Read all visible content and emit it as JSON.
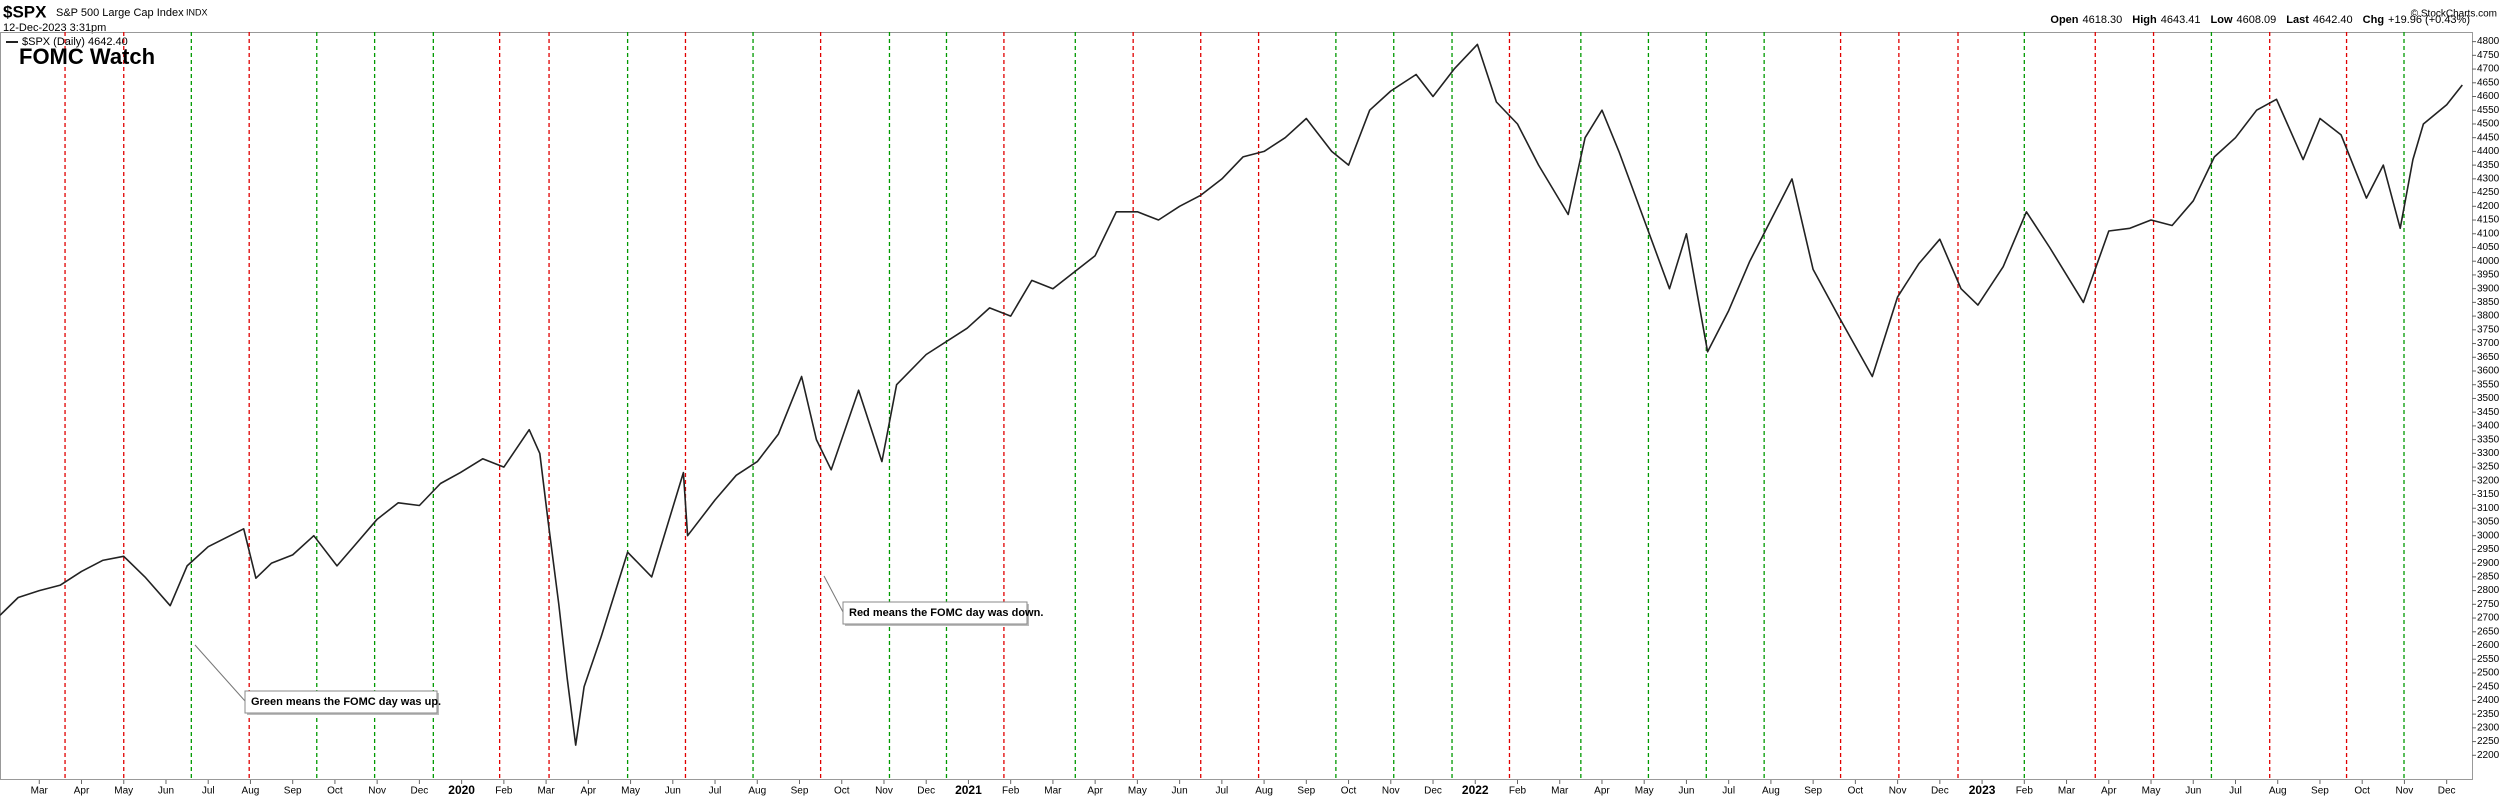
{
  "header": {
    "symbol": "$SPX",
    "name": "S&P 500 Large Cap Index",
    "exchange": "INDX",
    "date": "12-Dec-2023 3:31pm",
    "legend": "$SPX (Daily) 4642.40",
    "quote": [
      {
        "label": "Open",
        "value": "4618.30"
      },
      {
        "label": "High",
        "value": "4643.41"
      },
      {
        "label": "Low",
        "value": "4608.09"
      },
      {
        "label": "Last",
        "value": "4642.40"
      },
      {
        "label": "Chg",
        "value": "+19.96 (+0.43%)"
      }
    ],
    "credit": "© StockCharts.com"
  },
  "chart_data": {
    "type": "line",
    "title": "FOMC Watch",
    "title_color": "#0000dd",
    "x": [
      0.07,
      0.5,
      1,
      1.5,
      2,
      2.5,
      3,
      3.5,
      4.1,
      4.5,
      5,
      5.84,
      6.13,
      6.5,
      7,
      7.5,
      8.05,
      8.5,
      9,
      9.5,
      10,
      10.5,
      10.97,
      11.5,
      12,
      12.6,
      12.85,
      13.05,
      13.3,
      13.5,
      13.7,
      13.9,
      14.3,
      14.93,
      15.5,
      16.25,
      16.35,
      17,
      17.5,
      18,
      18.5,
      19.05,
      19.4,
      19.75,
      20.4,
      20.95,
      21.3,
      22,
      22.97,
      23.5,
      24,
      24.5,
      25,
      25.5,
      26,
      26.5,
      27,
      27.5,
      28,
      28.5,
      29,
      29.5,
      30,
      30.5,
      31,
      31.6,
      32,
      32.5,
      33,
      33.6,
      34,
      34.5,
      35.05,
      35.5,
      36,
      36.5,
      37.2,
      37.6,
      38,
      38.4,
      39,
      39.6,
      40,
      40.5,
      41,
      41.5,
      42.5,
      43,
      43.6,
      44.4,
      45,
      45.5,
      46,
      46.5,
      46.9,
      47.5,
      48.05,
      48.6,
      49.4,
      50,
      50.5,
      51,
      51.5,
      52,
      52.5,
      53,
      53.5,
      53.97,
      54.6,
      55,
      55.5,
      56.1,
      56.5,
      56.9,
      57.2,
      57.45,
      58,
      58.37
    ],
    "series": [
      {
        "color": "#222222",
        "values": [
          2710,
          2775,
          2800,
          2820,
          2870,
          2910,
          2925,
          2850,
          2745,
          2890,
          2960,
          3025,
          2845,
          2900,
          2930,
          3000,
          2890,
          2970,
          3060,
          3120,
          3110,
          3190,
          3230,
          3280,
          3250,
          3386,
          3300,
          3050,
          2750,
          2480,
          2237,
          2450,
          2630,
          2940,
          2850,
          3230,
          3000,
          3130,
          3220,
          3270,
          3370,
          3580,
          3350,
          3240,
          3530,
          3270,
          3550,
          3660,
          3756,
          3830,
          3800,
          3930,
          3900,
          3960,
          4020,
          4180,
          4180,
          4150,
          4200,
          4240,
          4300,
          4380,
          4400,
          4450,
          4520,
          4400,
          4350,
          4550,
          4620,
          4680,
          4600,
          4700,
          4790,
          4580,
          4500,
          4350,
          4170,
          4450,
          4550,
          4400,
          4150,
          3900,
          4100,
          3670,
          3820,
          4000,
          4300,
          3970,
          3800,
          3580,
          3870,
          3990,
          4080,
          3900,
          3840,
          3980,
          4180,
          4050,
          3850,
          4110,
          4120,
          4150,
          4130,
          4220,
          4380,
          4450,
          4550,
          4590,
          4370,
          4520,
          4460,
          4230,
          4350,
          4120,
          4370,
          4500,
          4570,
          4642
        ]
      }
    ],
    "fomc": {
      "x": [
        1.61,
        3.0,
        4.6,
        5.97,
        7.57,
        8.94,
        10.33,
        11.9,
        13.07,
        14.93,
        16.3,
        17.9,
        19.5,
        21.13,
        22.48,
        23.84,
        25.53,
        26.9,
        28.5,
        29.87,
        31.7,
        33.07,
        34.45,
        35.81,
        37.5,
        39.1,
        40.47,
        41.84,
        43.65,
        45.03,
        46.43,
        48.0,
        49.68,
        51.06,
        52.43,
        53.81,
        55.63,
        56.99
      ],
      "colors": [
        "#e00000",
        "#e00000",
        "#009900",
        "#e00000",
        "#009900",
        "#009900",
        "#009900",
        "#e00000",
        "#e00000",
        "#009900",
        "#e00000",
        "#009900",
        "#e00000",
        "#009900",
        "#009900",
        "#e00000",
        "#009900",
        "#e00000",
        "#e00000",
        "#e00000",
        "#009900",
        "#009900",
        "#009900",
        "#e00000",
        "#009900",
        "#009900",
        "#009900",
        "#009900",
        "#e00000",
        "#e00000",
        "#e00000",
        "#009900",
        "#e00000",
        "#e00000",
        "#009900",
        "#e00000",
        "#e00000",
        "#009900"
      ]
    },
    "annotations": [
      {
        "text": "Green means the FOMC day was up.",
        "color": "#008800"
      },
      {
        "text": "Red means the FOMC day was down.",
        "color": "#e00000"
      }
    ],
    "xlim": [
      0.07,
      58.6
    ],
    "xticks": [
      {
        "value": 1,
        "label": "Mar"
      },
      {
        "value": 2,
        "label": "Apr"
      },
      {
        "value": 3,
        "label": "May"
      },
      {
        "value": 4,
        "label": "Jun"
      },
      {
        "value": 5,
        "label": "Jul"
      },
      {
        "value": 6,
        "label": "Aug"
      },
      {
        "value": 7,
        "label": "Sep"
      },
      {
        "value": 8,
        "label": "Oct"
      },
      {
        "value": 9,
        "label": "Nov"
      },
      {
        "value": 10,
        "label": "Dec"
      },
      {
        "value": 11,
        "label": "2020"
      },
      {
        "value": 12,
        "label": "Feb"
      },
      {
        "value": 13,
        "label": "Mar"
      },
      {
        "value": 14,
        "label": "Apr"
      },
      {
        "value": 15,
        "label": "May"
      },
      {
        "value": 16,
        "label": "Jun"
      },
      {
        "value": 17,
        "label": "Jul"
      },
      {
        "value": 18,
        "label": "Aug"
      },
      {
        "value": 19,
        "label": "Sep"
      },
      {
        "value": 20,
        "label": "Oct"
      },
      {
        "value": 21,
        "label": "Nov"
      },
      {
        "value": 22,
        "label": "Dec"
      },
      {
        "value": 23,
        "label": "2021"
      },
      {
        "value": 24,
        "label": "Feb"
      },
      {
        "value": 25,
        "label": "Mar"
      },
      {
        "value": 26,
        "label": "Apr"
      },
      {
        "value": 27,
        "label": "May"
      },
      {
        "value": 28,
        "label": "Jun"
      },
      {
        "value": 29,
        "label": "Jul"
      },
      {
        "value": 30,
        "label": "Aug"
      },
      {
        "value": 31,
        "label": "Sep"
      },
      {
        "value": 32,
        "label": "Oct"
      },
      {
        "value": 33,
        "label": "Nov"
      },
      {
        "value": 34,
        "label": "Dec"
      },
      {
        "value": 35,
        "label": "2022"
      },
      {
        "value": 36,
        "label": "Feb"
      },
      {
        "value": 37,
        "label": "Mar"
      },
      {
        "value": 38,
        "label": "Apr"
      },
      {
        "value": 39,
        "label": "May"
      },
      {
        "value": 40,
        "label": "Jun"
      },
      {
        "value": 41,
        "label": "Jul"
      },
      {
        "value": 42,
        "label": "Aug"
      },
      {
        "value": 43,
        "label": "Sep"
      },
      {
        "value": 44,
        "label": "Oct"
      },
      {
        "value": 45,
        "label": "Nov"
      },
      {
        "value": 46,
        "label": "Dec"
      },
      {
        "value": 47,
        "label": "2023"
      },
      {
        "value": 48,
        "label": "Feb"
      },
      {
        "value": 49,
        "label": "Mar"
      },
      {
        "value": 50,
        "label": "Apr"
      },
      {
        "value": 51,
        "label": "May"
      },
      {
        "value": 52,
        "label": "Jun"
      },
      {
        "value": 53,
        "label": "Jul"
      },
      {
        "value": 54,
        "label": "Aug"
      },
      {
        "value": 55,
        "label": "Sep"
      },
      {
        "value": 56,
        "label": "Oct"
      },
      {
        "value": 57,
        "label": "Nov"
      },
      {
        "value": 58,
        "label": "Dec"
      }
    ],
    "ylim": [
      2110,
      4835
    ],
    "yticks": [
      2200,
      2250,
      2300,
      2350,
      2400,
      2450,
      2500,
      2550,
      2600,
      2650,
      2700,
      2750,
      2800,
      2850,
      2900,
      2950,
      3000,
      3050,
      3100,
      3150,
      3200,
      3250,
      3300,
      3350,
      3400,
      3450,
      3500,
      3550,
      3600,
      3650,
      3700,
      3750,
      3800,
      3850,
      3900,
      3950,
      4000,
      4050,
      4100,
      4150,
      4200,
      4250,
      4300,
      4350,
      4400,
      4450,
      4500,
      4550,
      4600,
      4650,
      4700,
      4750,
      4800
    ]
  }
}
